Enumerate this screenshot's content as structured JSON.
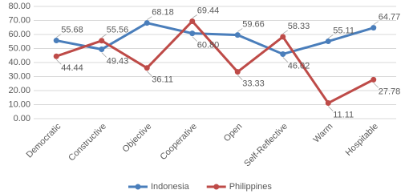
{
  "chart_data": {
    "type": "line",
    "categories": [
      "Democratic",
      "Constructive",
      "Objective",
      "Cooperative",
      "Open",
      "Self-Reflective",
      "Warm",
      "Hospitable"
    ],
    "series": [
      {
        "name": "Indonesia",
        "color": "#4a7ebb",
        "values": [
          55.68,
          49.43,
          68.18,
          60.8,
          59.66,
          46.02,
          55.11,
          64.77
        ],
        "value_labels": [
          "55.68",
          "49.43",
          "68.18",
          "60.80",
          "59.66",
          "46.02",
          "55.11",
          "64.77"
        ]
      },
      {
        "name": "Philippines",
        "color": "#be4b48",
        "values": [
          44.44,
          55.56,
          36.11,
          69.44,
          33.33,
          58.33,
          11.11,
          27.78
        ],
        "value_labels": [
          "44.44",
          "55.56",
          "36.11",
          "69.44",
          "33.33",
          "58.33",
          "11.11",
          "27.78"
        ]
      }
    ],
    "ylim": [
      0,
      80
    ],
    "yticks": [
      {
        "value": 0,
        "label": "0.00"
      },
      {
        "value": 10,
        "label": "10.00"
      },
      {
        "value": 20,
        "label": "20.00"
      },
      {
        "value": 30,
        "label": "30.00"
      },
      {
        "value": 40,
        "label": "40.00"
      },
      {
        "value": 50,
        "label": "50.00"
      },
      {
        "value": 60,
        "label": "60.00"
      },
      {
        "value": 70,
        "label": "70.00"
      },
      {
        "value": 80,
        "label": "80.00"
      }
    ],
    "grid": true,
    "legend": "bottom"
  }
}
